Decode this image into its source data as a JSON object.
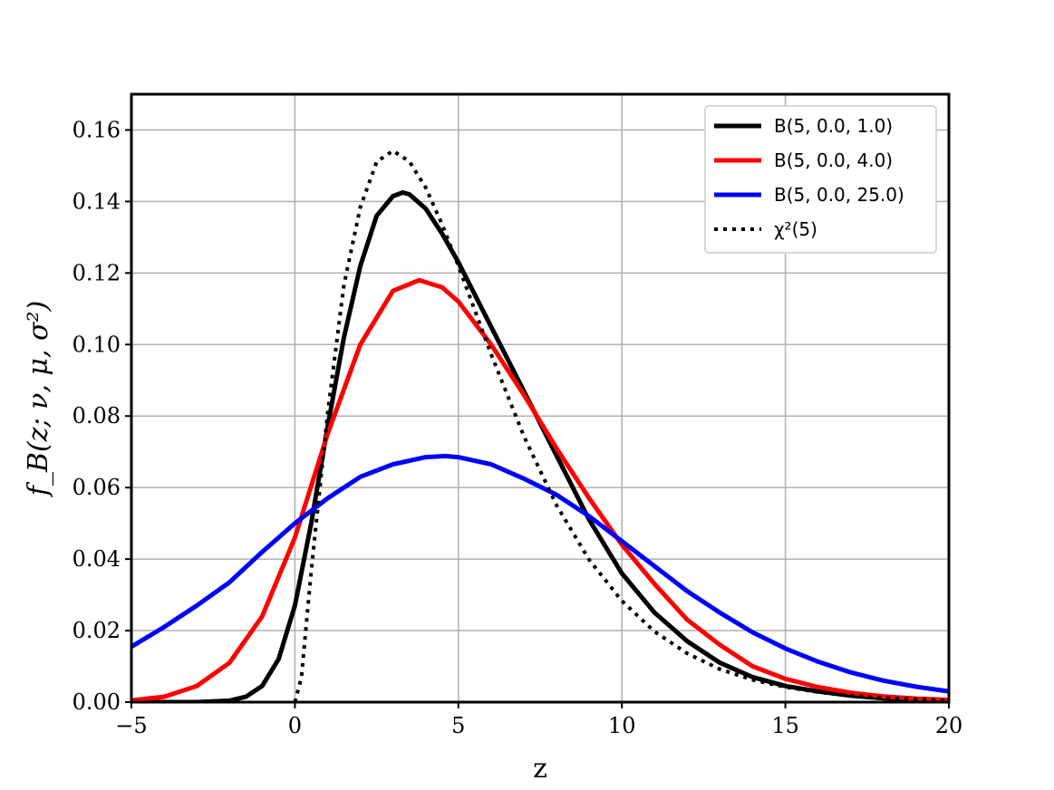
{
  "chart_data": {
    "type": "line",
    "xlabel": "z",
    "ylabel": "f_B(z; ν, μ, σ²)",
    "xlim": [
      -5,
      20
    ],
    "ylim": [
      0,
      0.17
    ],
    "x_ticks": [
      -5,
      0,
      5,
      10,
      15,
      20
    ],
    "x_tick_labels": [
      "−5",
      "0",
      "5",
      "10",
      "15",
      "20"
    ],
    "y_ticks": [
      0.0,
      0.02,
      0.04,
      0.06,
      0.08,
      0.1,
      0.12,
      0.14,
      0.16
    ],
    "y_tick_labels": [
      "0.00",
      "0.02",
      "0.04",
      "0.06",
      "0.08",
      "0.10",
      "0.12",
      "0.14",
      "0.16"
    ],
    "grid": true,
    "legend_position": "top-right",
    "series": [
      {
        "name": "B(5, 0.0, 1.0)",
        "color": "#000000",
        "style": "solid",
        "x": [
          -5,
          -3,
          -2,
          -1.5,
          -1,
          -0.5,
          0,
          0.5,
          1,
          1.5,
          2,
          2.5,
          3,
          3.3,
          3.5,
          4,
          4.5,
          5,
          6,
          7,
          8,
          9,
          10,
          11,
          12,
          13,
          14,
          15,
          16,
          17,
          18,
          19,
          20
        ],
        "y": [
          0,
          0,
          0.0004,
          0.0015,
          0.0045,
          0.012,
          0.027,
          0.05,
          0.077,
          0.102,
          0.122,
          0.136,
          0.1415,
          0.1425,
          0.142,
          0.138,
          0.131,
          0.123,
          0.105,
          0.087,
          0.069,
          0.051,
          0.036,
          0.025,
          0.017,
          0.011,
          0.007,
          0.0045,
          0.003,
          0.0018,
          0.0011,
          0.0007,
          0.0004
        ]
      },
      {
        "name": "B(5, 0.0, 4.0)",
        "color": "#ff0000",
        "style": "solid",
        "x": [
          -5,
          -4,
          -3,
          -2,
          -1,
          0,
          1,
          2,
          3,
          3.8,
          4.5,
          5,
          6,
          7,
          8,
          9,
          10,
          11,
          12,
          13,
          14,
          15,
          16,
          17,
          18,
          19,
          20
        ],
        "y": [
          0.0005,
          0.0015,
          0.0045,
          0.011,
          0.024,
          0.046,
          0.075,
          0.1,
          0.115,
          0.118,
          0.116,
          0.112,
          0.1,
          0.086,
          0.071,
          0.057,
          0.044,
          0.033,
          0.023,
          0.016,
          0.01,
          0.0065,
          0.0042,
          0.0026,
          0.0016,
          0.001,
          0.0006
        ]
      },
      {
        "name": "B(5, 0.0, 25.0)",
        "color": "#0000ff",
        "style": "solid",
        "x": [
          -5,
          -4,
          -3,
          -2,
          -1,
          0,
          1,
          2,
          3,
          4,
          4.6,
          5,
          6,
          7,
          8,
          9,
          10,
          11,
          12,
          13,
          14,
          15,
          16,
          17,
          18,
          19,
          20
        ],
        "y": [
          0.0155,
          0.021,
          0.027,
          0.0335,
          0.042,
          0.05,
          0.057,
          0.063,
          0.0665,
          0.0685,
          0.0688,
          0.0685,
          0.0665,
          0.0625,
          0.058,
          0.052,
          0.045,
          0.038,
          0.031,
          0.025,
          0.0195,
          0.015,
          0.0113,
          0.0083,
          0.006,
          0.0043,
          0.003
        ]
      },
      {
        "name": "χ²(5)",
        "color": "#000000",
        "style": "dotted",
        "x": [
          0,
          0.2,
          0.5,
          1,
          1.5,
          2,
          2.5,
          3,
          3.5,
          4,
          4.5,
          5,
          6,
          7,
          8,
          9,
          10,
          11,
          12,
          13,
          14,
          15,
          16,
          17,
          18,
          19,
          20
        ],
        "y": [
          0,
          0.0069,
          0.0366,
          0.0807,
          0.1167,
          0.1384,
          0.1511,
          0.1542,
          0.1512,
          0.1439,
          0.1336,
          0.122,
          0.0973,
          0.0744,
          0.0551,
          0.0398,
          0.0283,
          0.0197,
          0.0136,
          0.0092,
          0.0062,
          0.0042,
          0.0028,
          0.0018,
          0.0012,
          0.0008,
          0.0005
        ]
      }
    ]
  }
}
